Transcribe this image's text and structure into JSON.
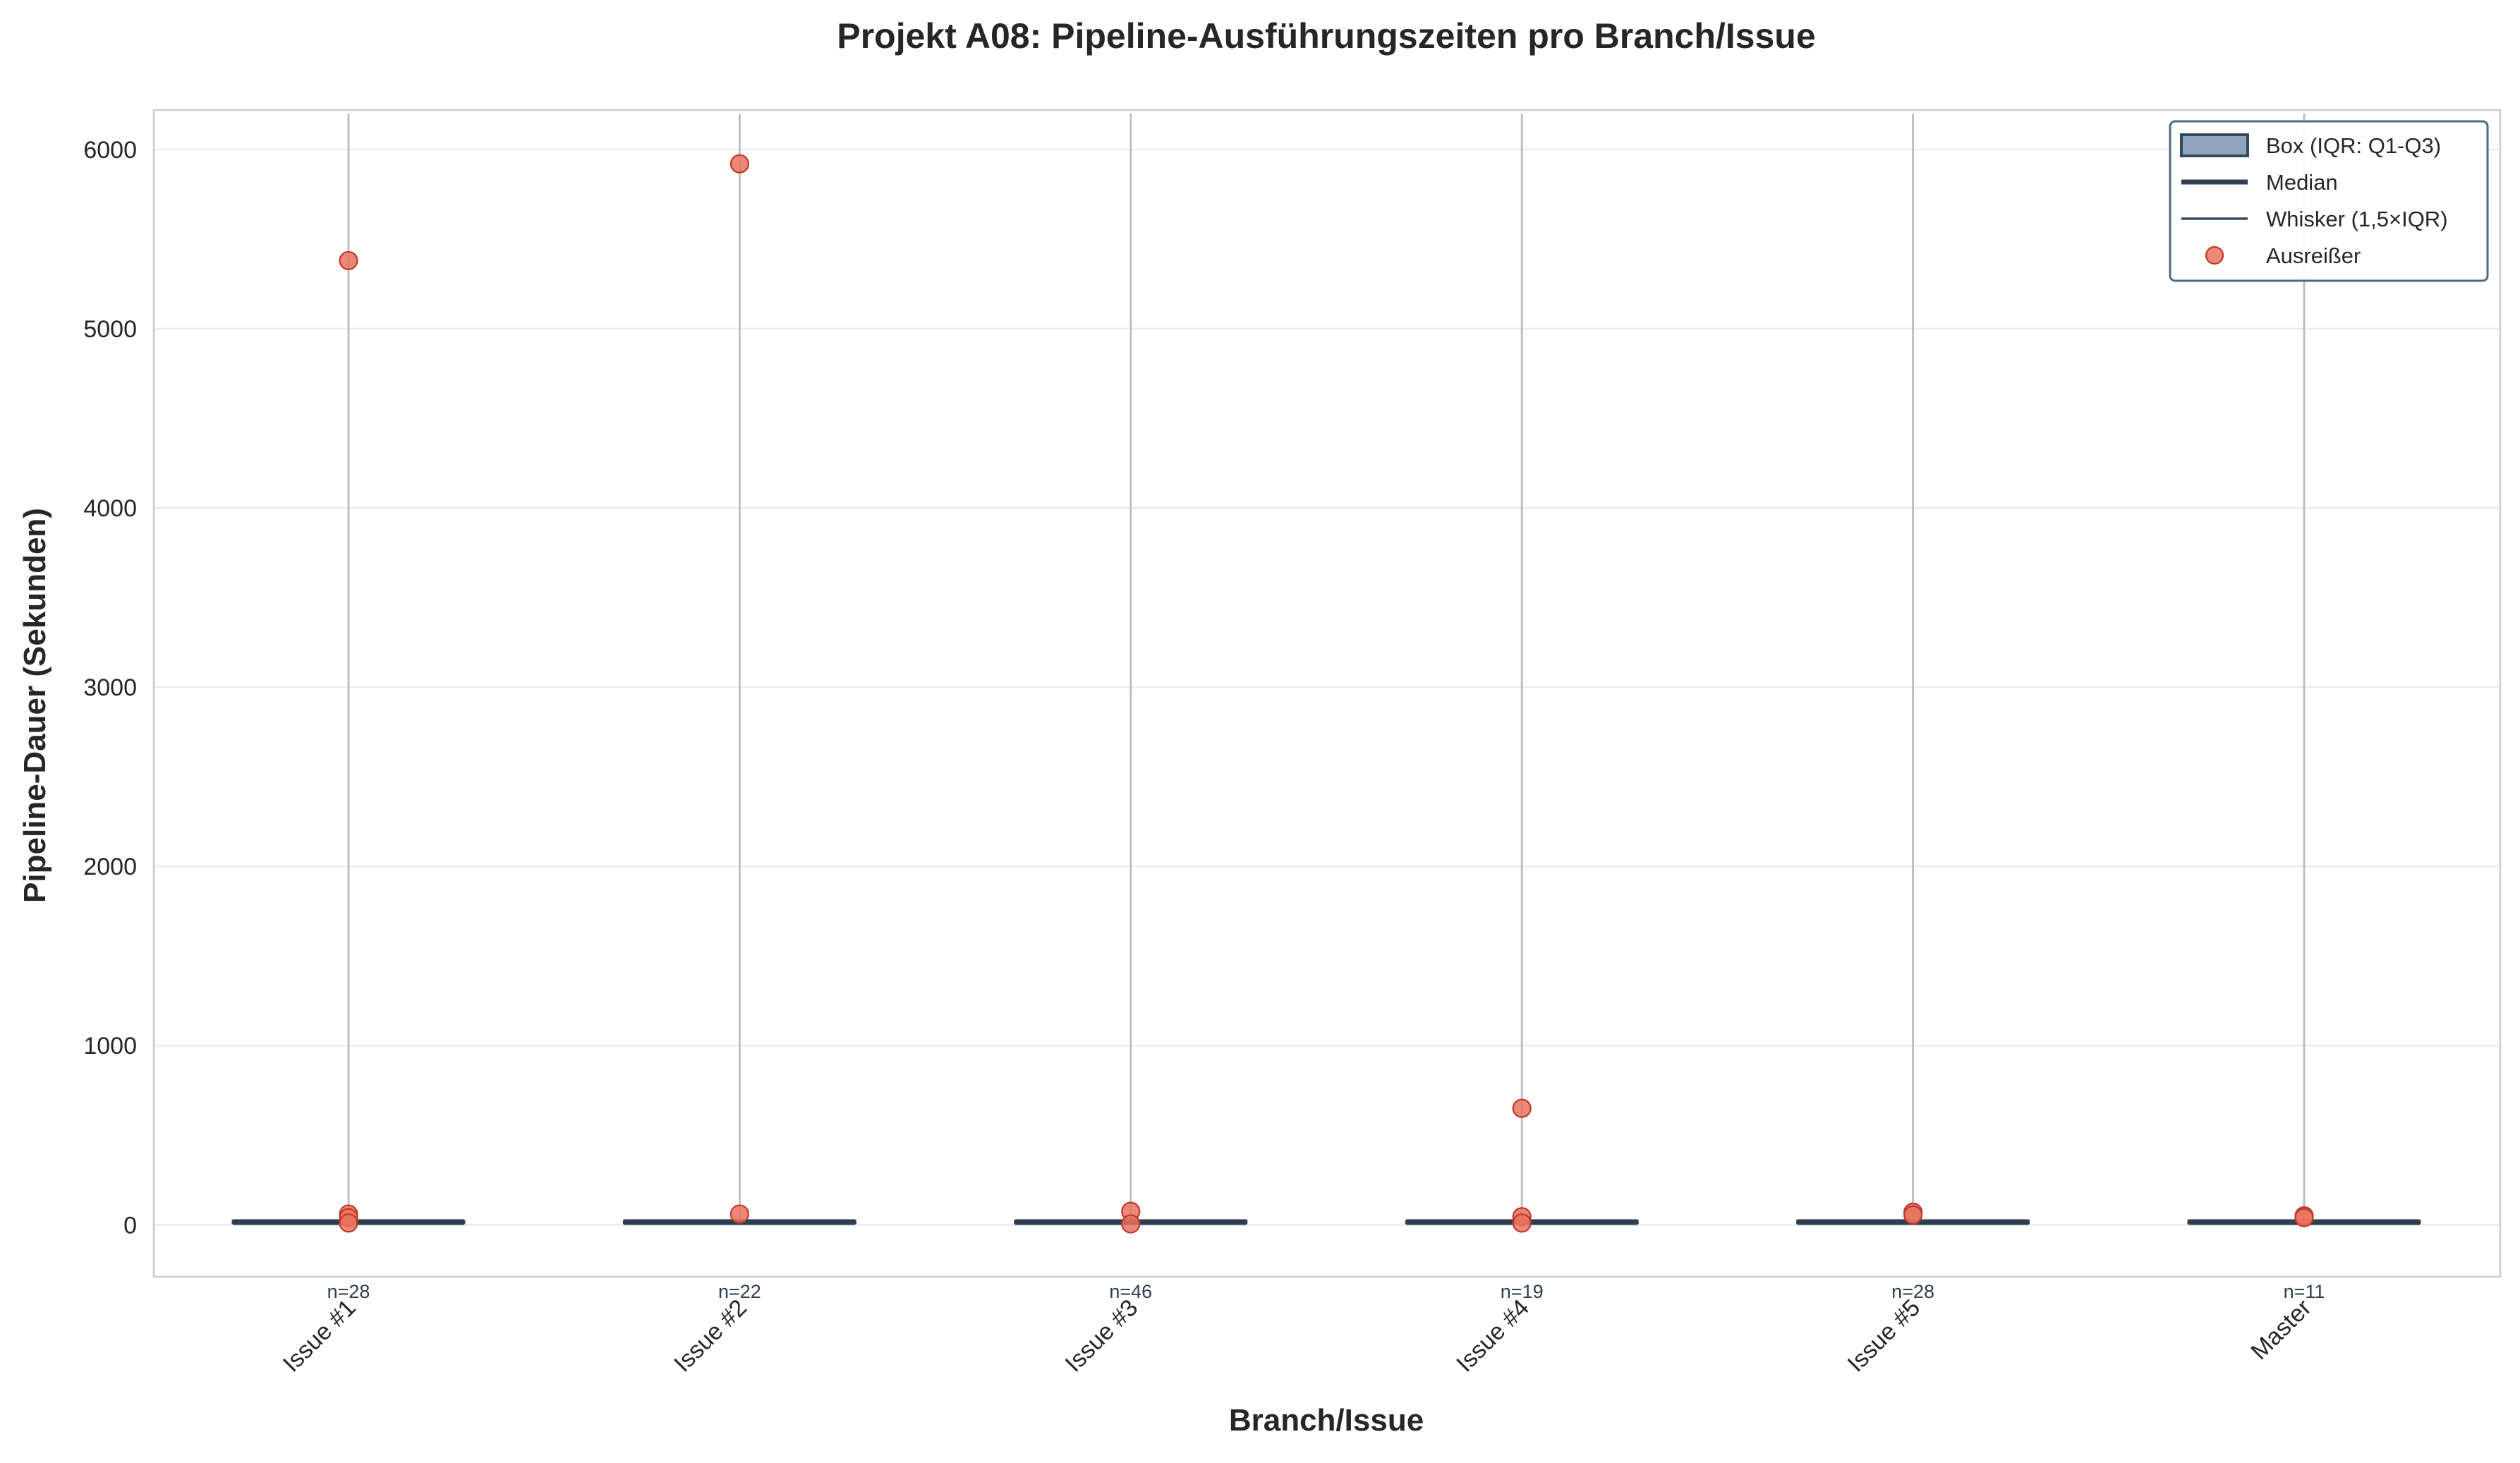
{
  "chart_data": {
    "type": "box",
    "title": "Projekt A08: Pipeline-Ausführungszeiten pro Branch/Issue",
    "xlabel": "Branch/Issue",
    "ylabel": "Pipeline-Dauer (Sekunden)",
    "ylim": [
      -290,
      6220
    ],
    "yticks": [
      0,
      1000,
      2000,
      3000,
      4000,
      5000,
      6000
    ],
    "grid": true,
    "legend_position": "top-right",
    "categories": [
      "Issue #1",
      "Issue #2",
      "Issue #3",
      "Issue #4",
      "Issue #5",
      "Master"
    ],
    "counts": [
      "n=28",
      "n=22",
      "n=46",
      "n=19",
      "n=28",
      "n=11"
    ],
    "boxes": [
      {
        "q1": 10,
        "median": 15,
        "q3": 22,
        "whisker_low": 5,
        "whisker_high": 6200,
        "outliers": [
          5380,
          60,
          40,
          10
        ]
      },
      {
        "q1": 10,
        "median": 15,
        "q3": 22,
        "whisker_low": 5,
        "whisker_high": 6200,
        "outliers": [
          5920,
          60
        ]
      },
      {
        "q1": 10,
        "median": 15,
        "q3": 22,
        "whisker_low": 5,
        "whisker_high": 6200,
        "outliers": [
          75,
          5
        ]
      },
      {
        "q1": 10,
        "median": 15,
        "q3": 22,
        "whisker_low": 5,
        "whisker_high": 6200,
        "outliers": [
          650,
          45,
          10
        ]
      },
      {
        "q1": 10,
        "median": 15,
        "q3": 22,
        "whisker_low": 5,
        "whisker_high": 6200,
        "outliers": [
          70,
          55
        ]
      },
      {
        "q1": 10,
        "median": 15,
        "q3": 22,
        "whisker_low": 5,
        "whisker_high": 6200,
        "outliers": [
          50,
          40
        ]
      }
    ],
    "legend": [
      {
        "label": "Box (IQR: Q1-Q3)",
        "kind": "box"
      },
      {
        "label": "Median",
        "kind": "median"
      },
      {
        "label": "Whisker (1,5×IQR)",
        "kind": "whisker"
      },
      {
        "label": "Ausreißer",
        "kind": "outlier"
      }
    ],
    "colors": {
      "box_fill": "#8fa3bb",
      "box_edge": "#34495e",
      "median": "#2c3e50",
      "whisker": "#bcbcbc",
      "outlier_fill": "#e8735f",
      "outlier_edge": "#c0392b",
      "grid": "#ebebeb",
      "legend_edge": "#4a6984"
    }
  }
}
